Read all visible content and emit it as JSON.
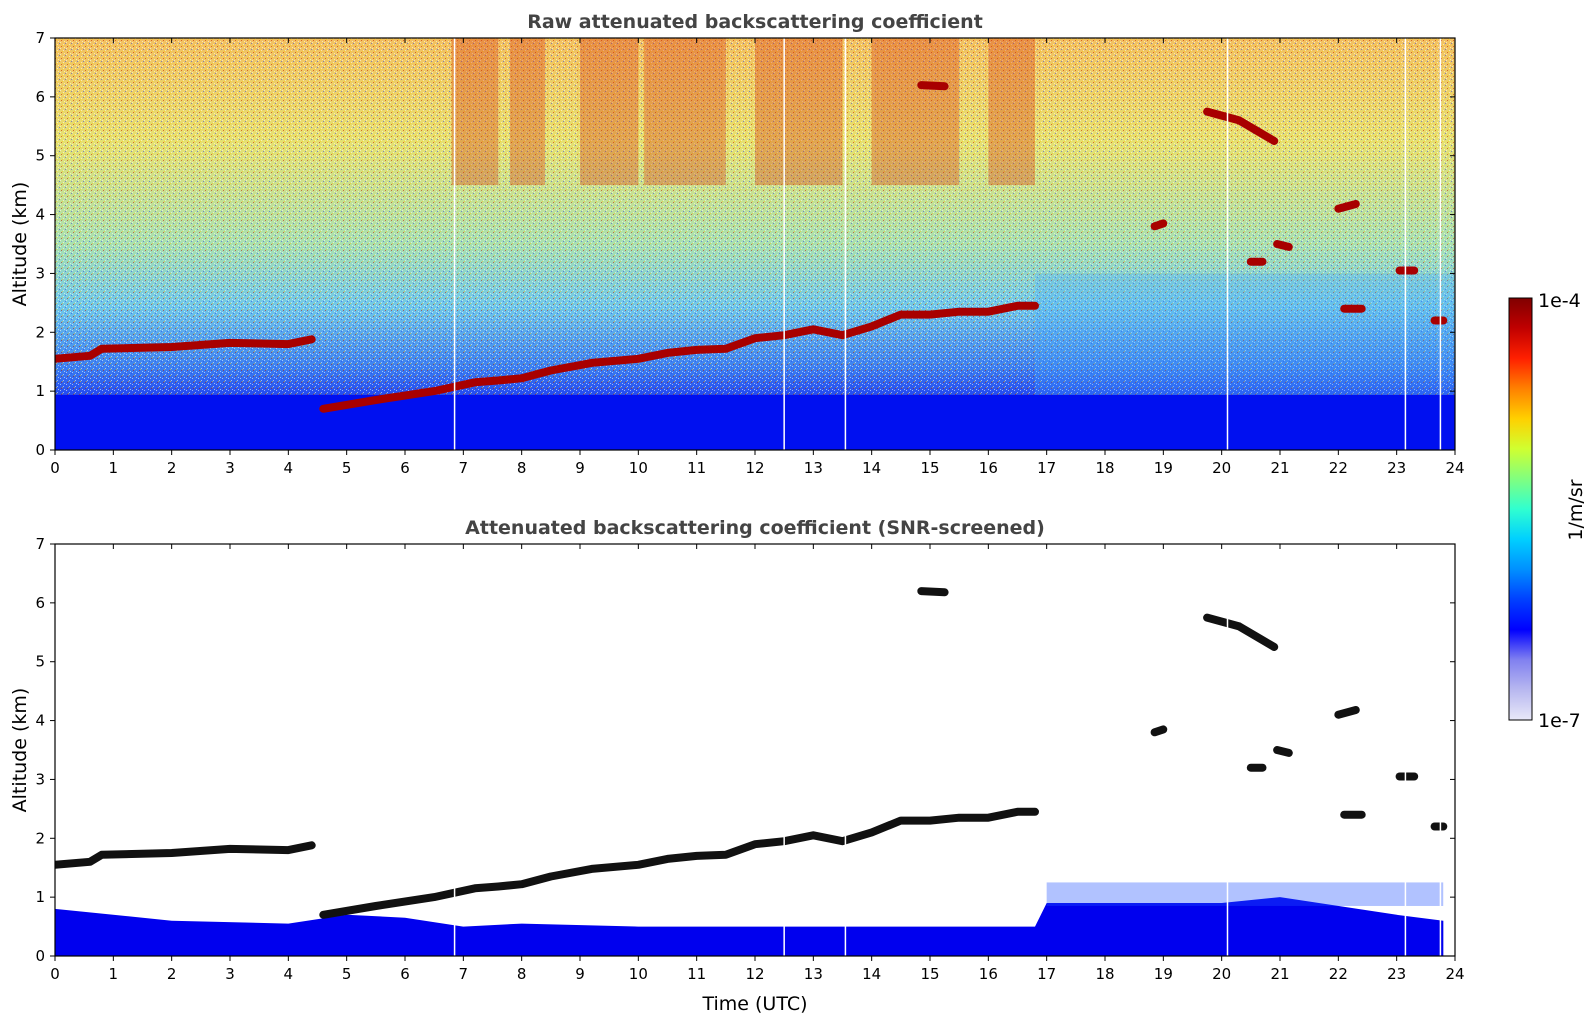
{
  "chart_data": [
    {
      "type": "heatmap",
      "title": "Raw attenuated backscattering coefficient",
      "xlabel": "",
      "ylabel": "Altitude (km)",
      "xlim": [
        0,
        24
      ],
      "ylim": [
        0,
        7
      ],
      "xticks": [
        "0",
        "1",
        "2",
        "3",
        "4",
        "5",
        "6",
        "7",
        "8",
        "9",
        "10",
        "11",
        "12",
        "13",
        "14",
        "15",
        "16",
        "17",
        "18",
        "19",
        "20",
        "21",
        "22",
        "23",
        "24"
      ],
      "yticks": [
        "0",
        "1",
        "2",
        "3",
        "4",
        "5",
        "6",
        "7"
      ],
      "layers": [
        {
          "name": "aerosol-layer",
          "points": [
            [
              0,
              1.55
            ],
            [
              0.6,
              1.6
            ],
            [
              0.8,
              1.72
            ],
            [
              2,
              1.75
            ],
            [
              3,
              1.82
            ],
            [
              4,
              1.8
            ],
            [
              4.4,
              1.88
            ],
            [
              4.6,
              0.7
            ],
            [
              5.5,
              0.85
            ],
            [
              6.5,
              1.0
            ],
            [
              7.2,
              1.15
            ],
            [
              7.6,
              1.18
            ],
            [
              8,
              1.22
            ],
            [
              8.5,
              1.35
            ],
            [
              9.2,
              1.48
            ],
            [
              10,
              1.55
            ],
            [
              10.5,
              1.65
            ],
            [
              11,
              1.7
            ],
            [
              11.5,
              1.72
            ],
            [
              12,
              1.9
            ],
            [
              12.5,
              1.95
            ],
            [
              13,
              2.05
            ],
            [
              13.5,
              1.95
            ],
            [
              14,
              2.1
            ],
            [
              14.5,
              2.3
            ],
            [
              15,
              2.3
            ],
            [
              15.5,
              2.35
            ],
            [
              16,
              2.35
            ],
            [
              16.5,
              2.45
            ],
            [
              16.8,
              2.45
            ]
          ]
        },
        {
          "name": "cloud-patch",
          "points": [
            [
              14.85,
              6.2
            ],
            [
              15.25,
              6.18
            ]
          ]
        },
        {
          "name": "cloud-patch",
          "points": [
            [
              19.75,
              5.75
            ],
            [
              20.3,
              5.6
            ],
            [
              20.9,
              5.25
            ]
          ]
        },
        {
          "name": "cloud-patch",
          "points": [
            [
              22.0,
              4.1
            ],
            [
              22.3,
              4.18
            ]
          ]
        },
        {
          "name": "cloud-patch",
          "points": [
            [
              18.85,
              3.8
            ],
            [
              19.0,
              3.85
            ]
          ]
        },
        {
          "name": "cloud-patch",
          "points": [
            [
              20.95,
              3.5
            ],
            [
              21.15,
              3.45
            ]
          ]
        },
        {
          "name": "cloud-patch",
          "points": [
            [
              20.5,
              3.2
            ],
            [
              20.7,
              3.2
            ]
          ]
        },
        {
          "name": "cloud-patch",
          "points": [
            [
              23.05,
              3.05
            ],
            [
              23.3,
              3.05
            ]
          ]
        },
        {
          "name": "cloud-patch",
          "points": [
            [
              22.1,
              2.4
            ],
            [
              22.4,
              2.4
            ]
          ]
        },
        {
          "name": "cloud-patch",
          "points": [
            [
              23.65,
              2.2
            ],
            [
              23.8,
              2.2
            ]
          ]
        }
      ],
      "data_gaps_x": [
        6.85,
        12.5,
        13.55,
        20.1,
        23.15,
        23.75
      ],
      "colorscale": "jet"
    },
    {
      "type": "heatmap",
      "title": "Attenuated backscattering coefficient (SNR-screened)",
      "xlabel": "Time (UTC)",
      "ylabel": "Altitude (km)",
      "xlim": [
        0,
        24
      ],
      "ylim": [
        0,
        7
      ],
      "xticks": [
        "0",
        "1",
        "2",
        "3",
        "4",
        "5",
        "6",
        "7",
        "8",
        "9",
        "10",
        "11",
        "12",
        "13",
        "14",
        "15",
        "16",
        "17",
        "18",
        "19",
        "20",
        "21",
        "22",
        "23",
        "24"
      ],
      "yticks": [
        "0",
        "1",
        "2",
        "3",
        "4",
        "5",
        "6",
        "7"
      ],
      "data_gaps_x": [
        6.85,
        12.5,
        13.55,
        20.1,
        23.15,
        23.75
      ],
      "colorscale": "jet"
    }
  ],
  "colorbar": {
    "label": "1/m/sr",
    "max_label": "1e-4",
    "min_label": "1e-7",
    "colors": [
      "#e8e8f8",
      "#b8b8f0",
      "#8080f0",
      "#0000ff",
      "#0040ff",
      "#0090ff",
      "#00d0ff",
      "#30ffd0",
      "#80ff80",
      "#d0ff30",
      "#ffd000",
      "#ff8000",
      "#ff2000",
      "#c00000",
      "#800000"
    ]
  }
}
